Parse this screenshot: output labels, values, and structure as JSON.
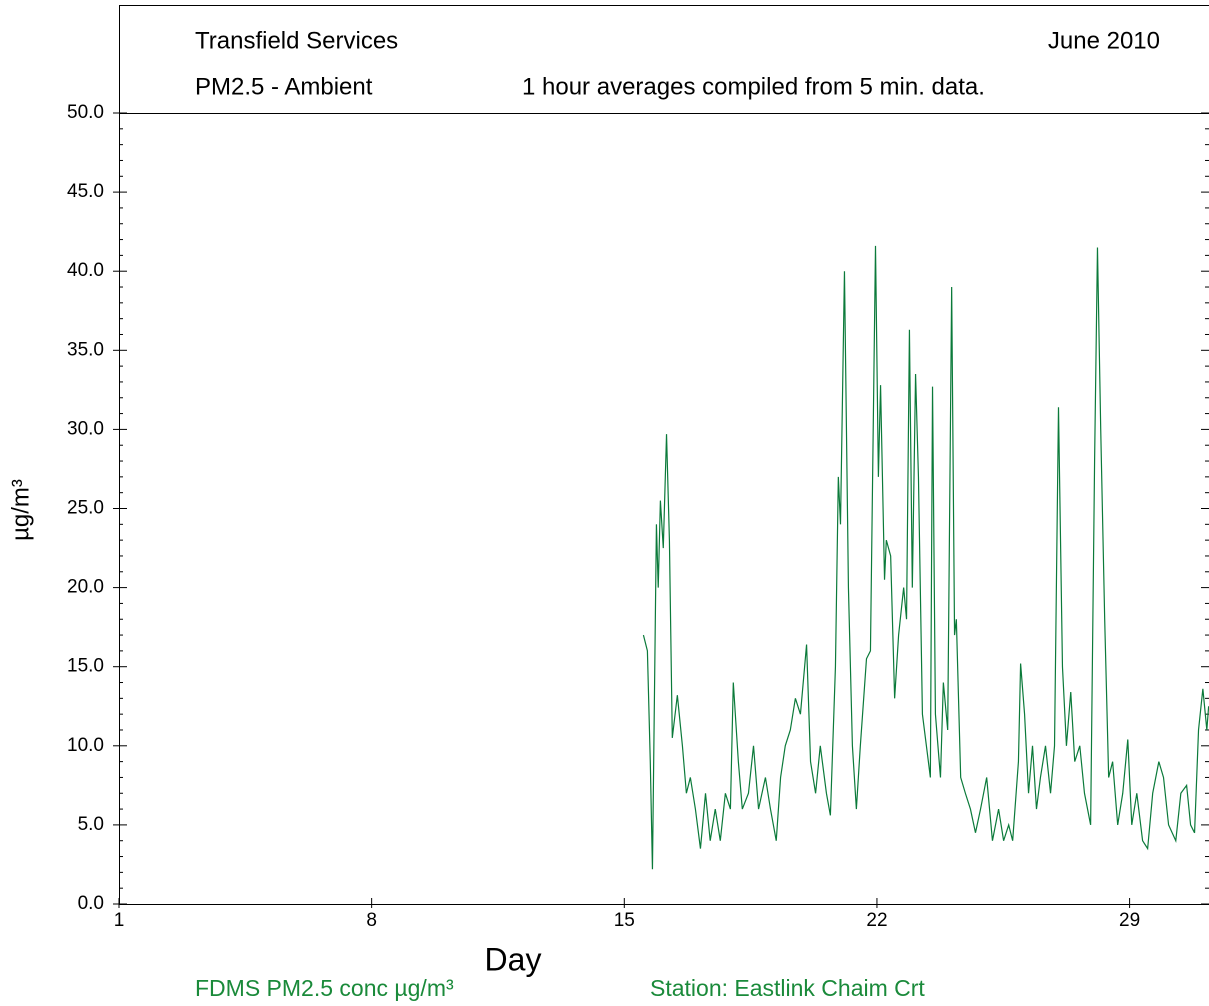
{
  "chart_data": {
    "type": "line",
    "header_left_1": "Transfield Services",
    "header_right_1": "June 2010",
    "header_left_2": "PM2.5 - Ambient",
    "header_right_2": "1 hour averages compiled from 5 min. data.",
    "x_label": "Day",
    "y_label": "µg/m³",
    "station": "Station: Eastlink Chaim Crt",
    "xlim": [
      1,
      31.2
    ],
    "ylim": [
      0,
      50
    ],
    "xticks": [
      1,
      8,
      15,
      22,
      29
    ],
    "yticks": [
      {
        "value": 0,
        "label": "0.0"
      },
      {
        "value": 5,
        "label": "5.0"
      },
      {
        "value": 10,
        "label": "10.0"
      },
      {
        "value": 15,
        "label": "15.0"
      },
      {
        "value": 20,
        "label": "20.0"
      },
      {
        "value": 25,
        "label": "25.0"
      },
      {
        "value": 30,
        "label": "30.0"
      },
      {
        "value": 35,
        "label": "35.0"
      },
      {
        "value": 40,
        "label": "40.0"
      },
      {
        "value": 45,
        "label": "45.0"
      },
      {
        "value": 50,
        "label": "50.0"
      }
    ],
    "x": [
      15.53,
      15.64,
      15.72,
      15.78,
      15.89,
      15.94,
      16.0,
      16.08,
      16.17,
      16.25,
      16.33,
      16.47,
      16.61,
      16.72,
      16.83,
      16.97,
      17.11,
      17.25,
      17.38,
      17.52,
      17.66,
      17.8,
      17.94,
      18.02,
      18.16,
      18.27,
      18.44,
      18.58,
      18.72,
      18.91,
      19.05,
      19.21,
      19.33,
      19.46,
      19.6,
      19.74,
      19.88,
      20.05,
      20.16,
      20.3,
      20.43,
      20.6,
      20.71,
      20.85,
      20.93,
      20.99,
      21.1,
      21.21,
      21.32,
      21.43,
      21.54,
      21.71,
      21.82,
      21.96,
      22.04,
      22.1,
      22.21,
      22.26,
      22.38,
      22.49,
      22.6,
      22.74,
      22.82,
      22.9,
      22.98,
      23.07,
      23.15,
      23.26,
      23.37,
      23.48,
      23.54,
      23.62,
      23.76,
      23.84,
      23.96,
      24.07,
      24.15,
      24.2,
      24.32,
      24.45,
      24.59,
      24.73,
      24.87,
      25.04,
      25.2,
      25.37,
      25.51,
      25.65,
      25.76,
      25.92,
      25.98,
      26.09,
      26.2,
      26.31,
      26.42,
      26.53,
      26.67,
      26.81,
      26.92,
      27.03,
      27.14,
      27.25,
      27.37,
      27.48,
      27.62,
      27.75,
      27.92,
      28.03,
      28.11,
      28.2,
      28.31,
      28.42,
      28.53,
      28.67,
      28.81,
      28.95,
      29.06,
      29.2,
      29.36,
      29.5,
      29.64,
      29.81,
      29.94,
      30.08,
      30.28,
      30.42,
      30.58,
      30.69,
      30.8,
      30.91,
      31.03,
      31.14,
      31.19
    ],
    "series": [
      {
        "name": "FDMS PM2.5 conc  µg/m³",
        "color": "#0b7a3a",
        "values": [
          17,
          16,
          9,
          2.2,
          24,
          20,
          25.5,
          22.5,
          29.7,
          23,
          10.5,
          13.2,
          10,
          7,
          8,
          6,
          3.5,
          7,
          4,
          6,
          4,
          7,
          6,
          14,
          9,
          6,
          7,
          10,
          6,
          8,
          6,
          4,
          8,
          10,
          11,
          13,
          12,
          16.4,
          9,
          7,
          10,
          7,
          5.6,
          15,
          27,
          24,
          40,
          20,
          10,
          6,
          10,
          15.5,
          16,
          41.6,
          27,
          32.8,
          20.5,
          23,
          22,
          13,
          17,
          20,
          18,
          36.3,
          20,
          33.5,
          27,
          12,
          10,
          8,
          32.7,
          12,
          8,
          14,
          11,
          39,
          17,
          18,
          8,
          7,
          6,
          4.5,
          6,
          8,
          4,
          6,
          4,
          5,
          4,
          9,
          15.2,
          12,
          7,
          10,
          6,
          8,
          10,
          7,
          10,
          31.4,
          15,
          10,
          13.4,
          9,
          10,
          7,
          5,
          28,
          41.5,
          30,
          18,
          8,
          9,
          5,
          7,
          10.4,
          5,
          7,
          4,
          3.5,
          7,
          9,
          8,
          5,
          4,
          7,
          7.5,
          5,
          4.5,
          11,
          13.6,
          11,
          12.5
        ]
      }
    ]
  }
}
